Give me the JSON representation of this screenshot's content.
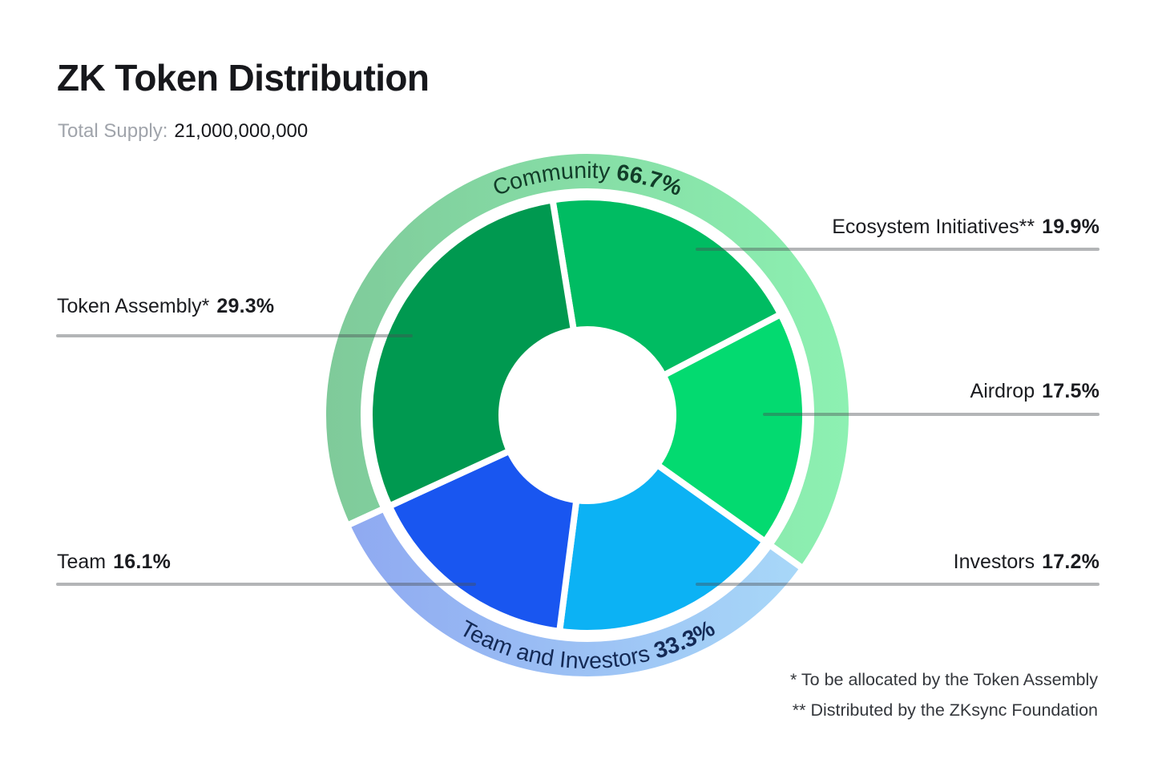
{
  "header": {
    "title": "ZK Token Distribution",
    "total_supply_label": "Total Supply:",
    "total_supply_value": "21,000,000,000"
  },
  "chart_data": {
    "type": "pie",
    "variant": "two-ring-donut",
    "title": "ZK Token Distribution",
    "total_supply": 21000000000,
    "inner_segments": [
      {
        "label": "Ecosystem Initiatives**",
        "value": 19.9,
        "percent": "19.9%",
        "color": "#00bc62"
      },
      {
        "label": "Airdrop",
        "value": 17.5,
        "percent": "17.5%",
        "color": "#03da70"
      },
      {
        "label": "Investors",
        "value": 17.2,
        "percent": "17.2%",
        "color": "#0cb2f4"
      },
      {
        "label": "Team",
        "value": 16.1,
        "percent": "16.1%",
        "color": "#1956f0"
      },
      {
        "label": "Token Assembly*",
        "value": 29.3,
        "percent": "29.3%",
        "color": "#009950"
      }
    ],
    "outer_segments": [
      {
        "label": "Community",
        "value": 66.7,
        "percent": "66.7%",
        "color_start": "#7fca9a",
        "color_end": "#8df1b2",
        "text_color": "#123d29"
      },
      {
        "label": "Team and Investors",
        "value": 33.3,
        "percent": "33.3%",
        "color_start": "#8fa9f1",
        "color_end": "#a8d8f8",
        "text_color": "#142a56"
      }
    ],
    "legend_position": "callouts",
    "grid": false
  },
  "callouts": [
    {
      "name": "Ecosystem Initiatives**",
      "percent": "19.9%",
      "side": "right"
    },
    {
      "name": "Airdrop",
      "percent": "17.5%",
      "side": "right"
    },
    {
      "name": "Investors",
      "percent": "17.2%",
      "side": "right"
    },
    {
      "name": "Token Assembly*",
      "percent": "29.3%",
      "side": "left"
    },
    {
      "name": "Team",
      "percent": "16.1%",
      "side": "left"
    }
  ],
  "footnotes": [
    "* To be allocated by the Token Assembly",
    "** Distributed by the ZKsync Foundation"
  ]
}
